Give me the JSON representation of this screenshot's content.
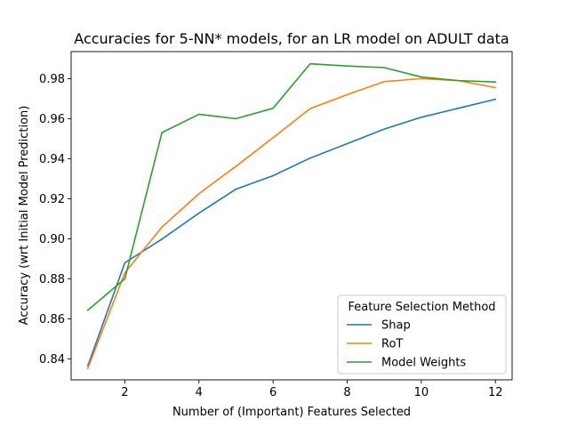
{
  "chart_data": {
    "type": "line",
    "title": "Accuracies for 5-NN* models, for an LR model on ADULT data",
    "xlabel": "Number of (Important) Features Selected",
    "ylabel": "Accuracy (wrt Initial Model Prediction)",
    "x": [
      1,
      2,
      3,
      4,
      5,
      6,
      7,
      8,
      9,
      10,
      11,
      12
    ],
    "xlim": [
      0.55,
      12.45
    ],
    "ylim": [
      0.8295,
      0.9935
    ],
    "x_ticks": [
      "2",
      "4",
      "6",
      "8",
      "10",
      "12"
    ],
    "x_tick_values": [
      2,
      4,
      6,
      8,
      10,
      12
    ],
    "y_ticks": [
      "0.84",
      "0.86",
      "0.88",
      "0.90",
      "0.92",
      "0.94",
      "0.96",
      "0.98"
    ],
    "y_tick_values": [
      0.84,
      0.86,
      0.88,
      0.9,
      0.92,
      0.94,
      0.96,
      0.98
    ],
    "grid": false,
    "legend_title": "Feature Selection Method",
    "legend_position": "lower-right",
    "series": [
      {
        "name": "Shap",
        "color": "#1f77b4",
        "values": [
          0.8365,
          0.888,
          0.8998,
          0.9128,
          0.9248,
          0.9315,
          0.9403,
          0.9475,
          0.9548,
          0.9607,
          0.9652,
          0.9697
        ]
      },
      {
        "name": "RoT",
        "color": "#ff7f0e",
        "values": [
          0.8353,
          0.883,
          0.9058,
          0.9225,
          0.9362,
          0.9505,
          0.965,
          0.972,
          0.9785,
          0.98,
          0.979,
          0.9755
        ]
      },
      {
        "name": "Model Weights",
        "color": "#2ca02c",
        "values": [
          0.8643,
          0.88,
          0.953,
          0.9622,
          0.96,
          0.9652,
          0.9874,
          0.9863,
          0.9855,
          0.9808,
          0.979,
          0.9783
        ]
      }
    ]
  }
}
